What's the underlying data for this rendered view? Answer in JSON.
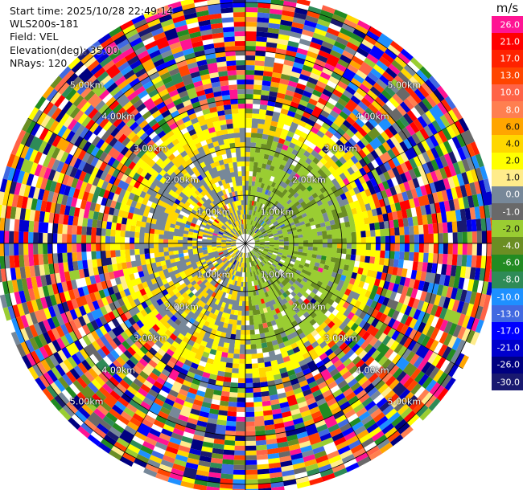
{
  "header": {
    "start_time": "Start time: 2025/10/28 22:49:14",
    "station": "WLS200s-181",
    "field": "Field: VEL",
    "elevation": "Elevation(deg): 35.00",
    "nrays": "NRays: 120"
  },
  "range_rings_km": [
    1.0,
    2.0,
    3.0,
    4.0,
    5.0
  ],
  "range_labels": [
    "1.00km",
    "2.00km",
    "3.00km",
    "4.00km",
    "5.00km"
  ],
  "radar": {
    "nrays": 120,
    "max_range_km": 5.2,
    "gates": 52
  },
  "colorbar": {
    "unit": "m/s",
    "levels": [
      {
        "label": "26.0",
        "color": "#ff1493"
      },
      {
        "label": "21.0",
        "color": "#ff0000"
      },
      {
        "label": "17.0",
        "color": "#ff2200"
      },
      {
        "label": "13.0",
        "color": "#ff4500"
      },
      {
        "label": "10.0",
        "color": "#ff6347"
      },
      {
        "label": "8.0",
        "color": "#ff7f50"
      },
      {
        "label": "6.0",
        "color": "#ffa500"
      },
      {
        "label": "4.0",
        "color": "#ffd700"
      },
      {
        "label": "2.0",
        "color": "#ffff00"
      },
      {
        "label": "1.0",
        "color": "#ffec8b"
      },
      {
        "label": "0.0",
        "color": "#778899"
      },
      {
        "label": "-1.0",
        "color": "#696969"
      },
      {
        "label": "-2.0",
        "color": "#9acd32"
      },
      {
        "label": "-4.0",
        "color": "#6b8e23"
      },
      {
        "label": "-6.0",
        "color": "#228b22"
      },
      {
        "label": "-8.0",
        "color": "#2e8b57"
      },
      {
        "label": "-10.0",
        "color": "#1e90ff"
      },
      {
        "label": "-13.0",
        "color": "#4169e1"
      },
      {
        "label": "-17.0",
        "color": "#0000ff"
      },
      {
        "label": "-21.0",
        "color": "#0000cd"
      },
      {
        "label": "-26.0",
        "color": "#000080"
      },
      {
        "label": "-30.0",
        "color": "#191970"
      }
    ]
  }
}
